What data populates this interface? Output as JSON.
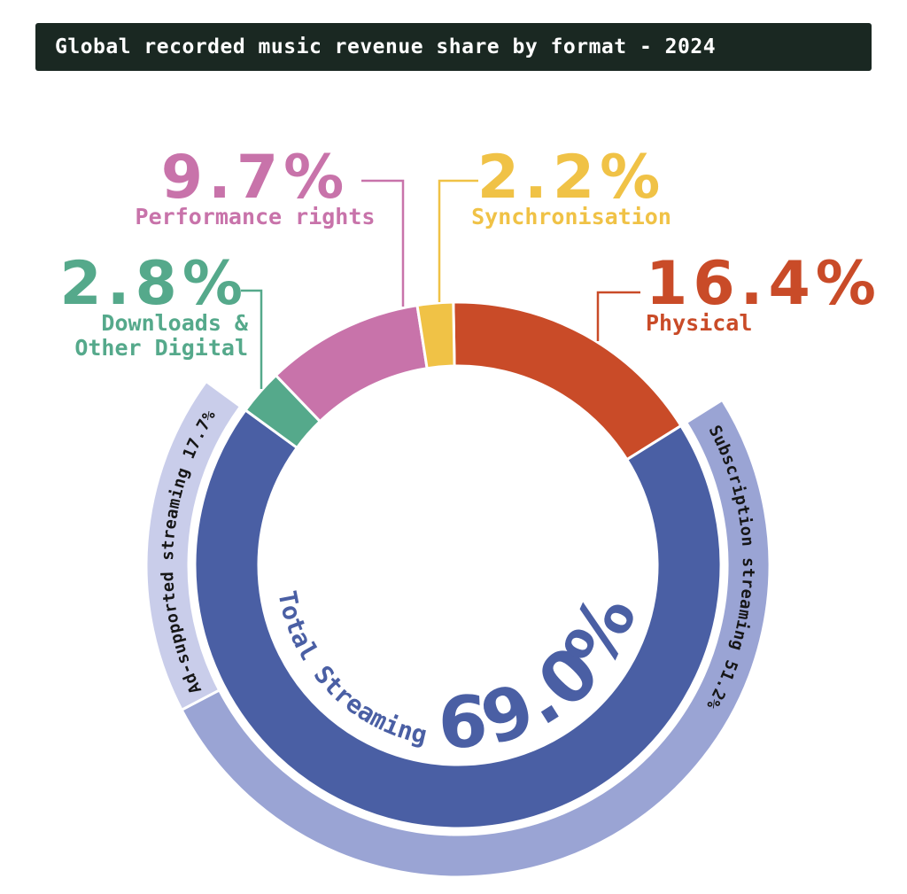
{
  "header": {
    "title": "Global recorded music revenue share by format - 2024",
    "bg_color": "#1a2822",
    "text_color": "#ffffff"
  },
  "chart_data": {
    "type": "donut",
    "title": "Global recorded music revenue share by format - 2024",
    "year": "2024",
    "units": "percent share of revenue",
    "direction": "clockwise",
    "start_angle_deg": -1,
    "separator_color": "#ffffff",
    "band_label_color": "#161616",
    "segments": [
      {
        "label": "Physical",
        "value": 16.4,
        "display": "16.4%",
        "color": "#c94b28"
      },
      {
        "label": "Total Streaming",
        "value": 69.0,
        "display": "69.0%",
        "color": "#4a5fa4",
        "sub_segments": [
          {
            "label": "Subscription streaming",
            "value": 51.2,
            "display": "51.2%",
            "color": "#9aa4d4"
          },
          {
            "label": "Ad-supported streaming",
            "value": 17.7,
            "display": "17.7%",
            "color": "#c9cdea"
          }
        ]
      },
      {
        "label": "Downloads & Other Digital",
        "value": 2.8,
        "display": "2.8%",
        "color": "#55a98b",
        "label_lines": [
          "Downloads &",
          "Other Digital"
        ]
      },
      {
        "label": "Performance rights",
        "value": 9.7,
        "display": "9.7%",
        "color": "#c873aa"
      },
      {
        "label": "Synchronisation",
        "value": 2.2,
        "display": "2.2%",
        "color": "#f0c246"
      }
    ],
    "center_label": {
      "text": "Total Streaming",
      "value": "69.0%"
    }
  }
}
